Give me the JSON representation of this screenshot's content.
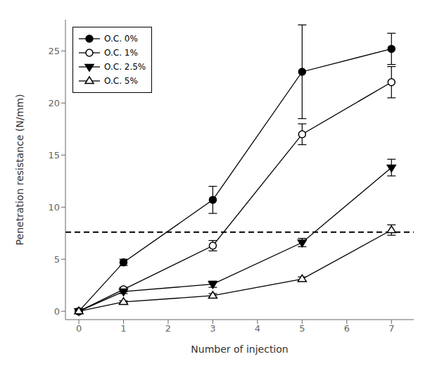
{
  "chart_data": {
    "type": "line",
    "xlabel": "Number of injection",
    "ylabel": "Penetration resistance (N/mm)",
    "x": [
      0,
      1,
      3,
      5,
      7
    ],
    "series": [
      {
        "name": "O.C. 0%",
        "values": [
          0,
          4.7,
          10.7,
          23.0,
          25.2
        ],
        "yerr": [
          0.0,
          0.3,
          1.3,
          4.5,
          1.5
        ],
        "marker": "circle",
        "color": "black"
      },
      {
        "name": "O.C. 1%",
        "values": [
          0,
          2.1,
          6.3,
          17.0,
          22.0
        ],
        "yerr": [
          0.0,
          0.2,
          0.5,
          1.0,
          1.5
        ],
        "marker": "open_circle",
        "color": "black"
      },
      {
        "name": "O.C. 2.5%",
        "values": [
          0,
          1.9,
          2.6,
          6.6,
          13.8
        ],
        "yerr": [
          0.0,
          0.2,
          0.3,
          0.4,
          0.8
        ],
        "marker": "triangle_down",
        "color": "black"
      },
      {
        "name": "O.C. 5%",
        "values": [
          0,
          0.9,
          1.5,
          3.1,
          7.8
        ],
        "yerr": [
          0.0,
          0.1,
          0.2,
          0.2,
          0.5
        ],
        "marker": "open_triangle_up",
        "color": "black"
      }
    ],
    "hline": {
      "y": 7.6,
      "line_style": "dashed",
      "color": "black"
    },
    "xlim": [
      -0.3,
      7.5
    ],
    "ylim": [
      -0.8,
      28
    ],
    "xticks": [
      0,
      1,
      2,
      3,
      4,
      5,
      6,
      7
    ],
    "yticks": [
      0,
      5,
      10,
      15,
      20,
      25
    ],
    "grid": false,
    "legend": "upper left"
  }
}
